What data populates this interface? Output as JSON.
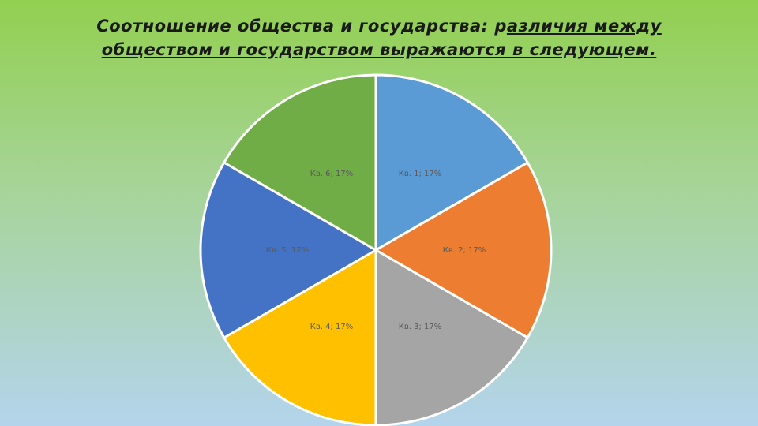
{
  "chart_data": {
    "type": "pie",
    "title": [
      "Соотношение общества и государства:  р",
      "азличия между обществом и государством выражаются в следующем."
    ],
    "values": [
      17,
      17,
      17,
      17,
      17,
      17
    ],
    "value_labels": [
      "Кв. 1; 17%",
      "Кв. 2; 17%",
      "Кв. 3; 17%",
      "Кв. 4; 17%",
      "Кв. 5; 17%",
      "Кв. 6; 17%"
    ],
    "colors": [
      "#5b9bd5",
      "#ed7d31",
      "#a5a5a5",
      "#ffc000",
      "#4472c4",
      "#70ad47"
    ]
  }
}
